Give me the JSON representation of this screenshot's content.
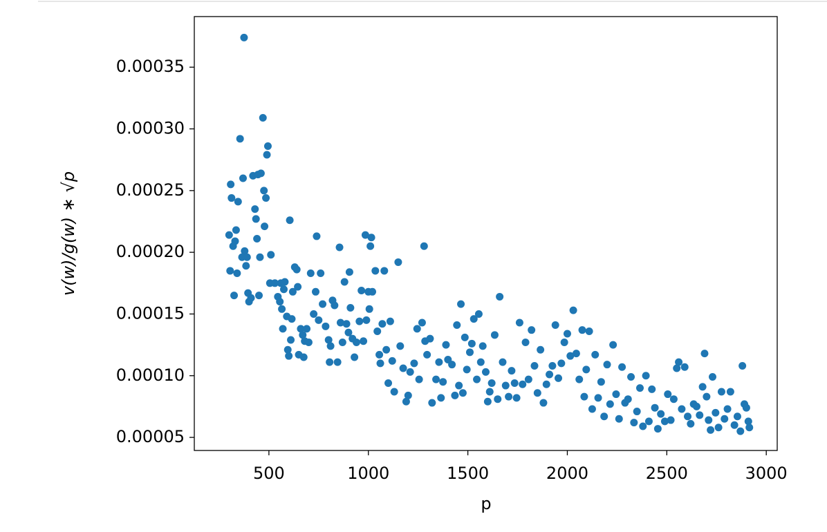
{
  "chart_data": {
    "type": "scatter",
    "x_label": "p",
    "y_label": "v(w)/g(w) ∗ √p",
    "color": "#1f77b4",
    "xlim": [
      125,
      3055
    ],
    "ylim": [
      3.94e-05,
      0.000391
    ],
    "xticks": [
      500,
      1000,
      1500,
      2000,
      2500,
      3000
    ],
    "yticks": [
      {
        "value": 5e-05,
        "label": "0.00005"
      },
      {
        "value": 0.0001,
        "label": "0.00010"
      },
      {
        "value": 0.00015,
        "label": "0.00015"
      },
      {
        "value": 0.0002,
        "label": "0.00020"
      },
      {
        "value": 0.00025,
        "label": "0.00025"
      },
      {
        "value": 0.0003,
        "label": "0.00030"
      },
      {
        "value": 0.00035,
        "label": "0.00035"
      }
    ],
    "x": [
      300,
      305,
      308,
      312,
      320,
      325,
      330,
      335,
      340,
      345,
      355,
      365,
      370,
      375,
      378,
      385,
      390,
      395,
      400,
      410,
      420,
      430,
      435,
      440,
      445,
      450,
      455,
      460,
      470,
      475,
      478,
      485,
      490,
      495,
      510,
      505,
      530,
      545,
      555,
      560,
      565,
      570,
      575,
      580,
      590,
      595,
      600,
      605,
      610,
      615,
      620,
      630,
      640,
      645,
      650,
      660,
      670,
      675,
      680,
      690,
      700,
      710,
      725,
      735,
      740,
      750,
      760,
      770,
      785,
      800,
      805,
      810,
      820,
      830,
      845,
      855,
      860,
      870,
      880,
      890,
      900,
      905,
      910,
      920,
      930,
      940,
      955,
      965,
      975,
      985,
      990,
      1000,
      1005,
      1010,
      1015,
      1020,
      1035,
      1045,
      1055,
      1060,
      1070,
      1080,
      1090,
      1100,
      1110,
      1120,
      1130,
      1150,
      1160,
      1175,
      1190,
      1200,
      1210,
      1230,
      1245,
      1255,
      1270,
      1280,
      1285,
      1295,
      1310,
      1320,
      1340,
      1355,
      1365,
      1375,
      1390,
      1400,
      1420,
      1435,
      1445,
      1455,
      1465,
      1475,
      1485,
      1495,
      1510,
      1520,
      1530,
      1545,
      1555,
      1565,
      1575,
      1590,
      1600,
      1610,
      1620,
      1635,
      1650,
      1660,
      1675,
      1690,
      1705,
      1720,
      1735,
      1745,
      1760,
      1775,
      1790,
      1805,
      1820,
      1835,
      1850,
      1865,
      1880,
      1895,
      1910,
      1925,
      1940,
      1955,
      1970,
      1985,
      2000,
      2015,
      2030,
      2045,
      2060,
      2075,
      2085,
      2095,
      2110,
      2125,
      2140,
      2155,
      2170,
      2185,
      2200,
      2215,
      2230,
      2245,
      2260,
      2275,
      2290,
      2305,
      2320,
      2335,
      2350,
      2365,
      2380,
      2395,
      2410,
      2425,
      2440,
      2455,
      2470,
      2490,
      2505,
      2520,
      2535,
      2550,
      2560,
      2575,
      2590,
      2605,
      2620,
      2635,
      2650,
      2665,
      2680,
      2690,
      2700,
      2710,
      2720,
      2730,
      2745,
      2760,
      2775,
      2790,
      2805,
      2820,
      2840,
      2855,
      2870,
      2880,
      2890,
      2900,
      2910,
      2915
    ],
    "values": [
      0.000214,
      0.000185,
      0.000255,
      0.000244,
      0.000205,
      0.000165,
      0.000209,
      0.000218,
      0.000183,
      0.000241,
      0.000292,
      0.000196,
      0.00026,
      0.000374,
      0.000201,
      0.000189,
      0.000196,
      0.000167,
      0.00016,
      0.000163,
      0.000262,
      0.000235,
      0.000227,
      0.000211,
      0.000263,
      0.000165,
      0.000196,
      0.000264,
      0.000309,
      0.00025,
      0.000221,
      0.000244,
      0.000279,
      0.000286,
      0.000198,
      0.000175,
      0.000175,
      0.000164,
      0.00016,
      0.000175,
      0.000154,
      0.000138,
      0.00017,
      0.000176,
      0.000148,
      0.000121,
      0.000116,
      0.000226,
      0.000129,
      0.000146,
      0.000168,
      0.000188,
      0.000186,
      0.000172,
      0.000117,
      0.000138,
      0.000133,
      0.000115,
      0.000128,
      0.000138,
      0.000127,
      0.000183,
      0.00015,
      0.000168,
      0.000213,
      0.000145,
      0.000183,
      0.000158,
      0.00014,
      0.000129,
      0.000111,
      0.000124,
      0.000161,
      0.000157,
      0.000111,
      0.000204,
      0.000143,
      0.000127,
      0.000176,
      0.000142,
      0.000135,
      0.000184,
      0.000155,
      0.00013,
      0.000115,
      0.000127,
      0.000144,
      0.000169,
      0.000128,
      0.000214,
      0.000145,
      0.000168,
      0.000154,
      0.000205,
      0.000212,
      0.000168,
      0.000185,
      0.000136,
      0.000117,
      0.00011,
      0.000142,
      0.000185,
      0.000121,
      9.4e-05,
      0.000144,
      0.000112,
      8.7e-05,
      0.000192,
      0.000124,
      0.000106,
      7.9e-05,
      8.4e-05,
      0.000103,
      0.00011,
      0.000138,
      9.7e-05,
      0.000143,
      0.000205,
      0.000128,
      0.000117,
      0.00013,
      7.8e-05,
      9.7e-05,
      0.000111,
      8.2e-05,
      9.5e-05,
      0.000125,
      0.000113,
      0.000109,
      8.4e-05,
      0.000141,
      9.2e-05,
      0.000158,
      8.6e-05,
      0.000131,
      0.000105,
      0.000119,
      0.000126,
      0.000146,
      9.7e-05,
      0.00015,
      0.000111,
      0.000124,
      0.000103,
      7.9e-05,
      8.7e-05,
      9.4e-05,
      0.000133,
      8.1e-05,
      0.000164,
      0.000111,
      9.2e-05,
      8.3e-05,
      0.000104,
      9.4e-05,
      8.2e-05,
      0.000143,
      9.3e-05,
      0.000127,
      9.7e-05,
      0.000137,
      0.000108,
      8.6e-05,
      0.000121,
      7.8e-05,
      9.3e-05,
      0.000101,
      0.000108,
      0.000141,
      9.8e-05,
      0.00011,
      0.000127,
      0.000134,
      0.000116,
      0.000153,
      0.000118,
      9.7e-05,
      0.000137,
      8.3e-05,
      0.000105,
      0.000136,
      7.3e-05,
      0.000117,
      8.2e-05,
      9.5e-05,
      6.7e-05,
      0.000109,
      7.7e-05,
      0.000125,
      8.5e-05,
      6.5e-05,
      0.000107,
      7.8e-05,
      8.1e-05,
      9.9e-05,
      6.2e-05,
      7.1e-05,
      9e-05,
      5.9e-05,
      0.0001,
      6.3e-05,
      8.9e-05,
      7.4e-05,
      5.7e-05,
      6.9e-05,
      6.3e-05,
      8.5e-05,
      6.4e-05,
      8.1e-05,
      0.000106,
      0.000111,
      7.3e-05,
      0.000107,
      6.7e-05,
      6.1e-05,
      7.7e-05,
      7.5e-05,
      6.8e-05,
      9.1e-05,
      0.000118,
      8.3e-05,
      6.4e-05,
      5.6e-05,
      9.9e-05,
      7e-05,
      5.8e-05,
      8.7e-05,
      6.5e-05,
      7.3e-05,
      8.7e-05,
      6e-05,
      6.7e-05,
      5.5e-05,
      0.000108,
      7.7e-05,
      7.4e-05,
      6.3e-05,
      5.8e-05
    ]
  }
}
